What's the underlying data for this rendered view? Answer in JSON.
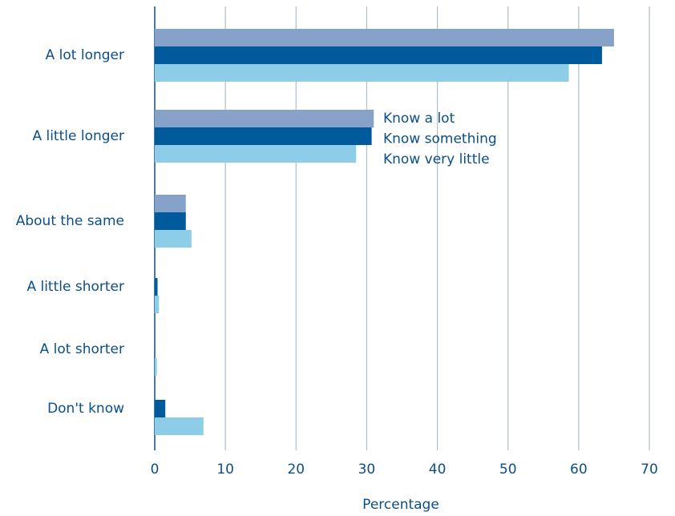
{
  "chart_data": {
    "type": "hbar",
    "categories": [
      "A lot longer",
      "A little longer",
      "About the same",
      "A little shorter",
      "A lot shorter",
      "Don't know"
    ],
    "series": [
      {
        "name": "Know a lot",
        "color": "#87a2c9",
        "values": [
          65.0,
          31.0,
          4.4,
          0,
          0,
          0
        ]
      },
      {
        "name": "Know something",
        "color": "#005a9c",
        "values": [
          63.3,
          30.7,
          4.4,
          0.4,
          0,
          1.5
        ]
      },
      {
        "name": "Know very little",
        "color": "#8dcde8",
        "values": [
          58.6,
          28.5,
          5.2,
          0.6,
          0.3,
          6.9
        ]
      }
    ],
    "xlabel": "Percentage",
    "xlim": [
      0,
      70
    ],
    "xticks": [
      0,
      10,
      20,
      30,
      40,
      50,
      60,
      70
    ],
    "grid": true
  }
}
